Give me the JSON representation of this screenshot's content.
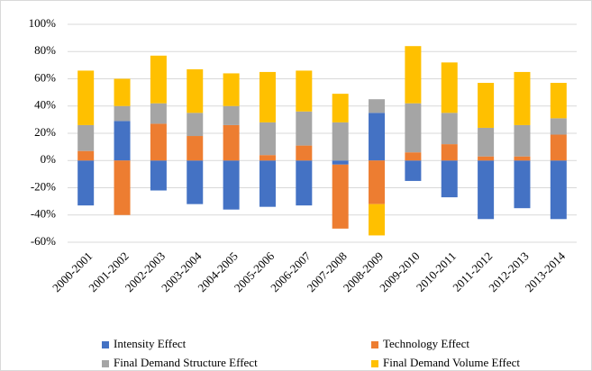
{
  "chart_data": {
    "type": "bar",
    "stacked": true,
    "categories": [
      "2000-2001",
      "2001-2002",
      "2002-2003",
      "2003-2004",
      "2004-2005",
      "2005-2006",
      "2006-2007",
      "2007-2008",
      "2008-2009",
      "2009-2010",
      "2010-2011",
      "2011-2012",
      "2012-2013",
      "2013-2014"
    ],
    "series": [
      {
        "name": "Intensity Effect",
        "color": "#4472c4",
        "values": [
          -33,
          29,
          -22,
          -32,
          -36,
          -34,
          -33,
          -3,
          35,
          -15,
          -27,
          -43,
          -35,
          -43
        ]
      },
      {
        "name": "Technology Effect",
        "color": "#ed7d31",
        "values": [
          7,
          -40,
          27,
          18,
          26,
          4,
          11,
          -47,
          -32,
          6,
          12,
          3,
          3,
          19
        ]
      },
      {
        "name": "Final Demand Structure Effect",
        "color": "#a5a5a5",
        "values": [
          19,
          11,
          15,
          17,
          14,
          24,
          25,
          28,
          10,
          36,
          23,
          21,
          23,
          12
        ]
      },
      {
        "name": "Final Demand Volume Effect",
        "color": "#ffc000",
        "values": [
          40,
          20,
          35,
          32,
          24,
          37,
          30,
          21,
          -23,
          42,
          37,
          33,
          39,
          26
        ]
      }
    ],
    "ylim": [
      -60,
      100
    ],
    "yticks": [
      {
        "value": -60,
        "label": "-60%"
      },
      {
        "value": -40,
        "label": "-40%"
      },
      {
        "value": -20,
        "label": "-20%"
      },
      {
        "value": 0,
        "label": "0%"
      },
      {
        "value": 20,
        "label": "20%"
      },
      {
        "value": 40,
        "label": "40%"
      },
      {
        "value": 60,
        "label": "60%"
      },
      {
        "value": 80,
        "label": "80%"
      },
      {
        "value": 100,
        "label": "100%"
      }
    ],
    "grid": true,
    "legend": "bottom"
  }
}
